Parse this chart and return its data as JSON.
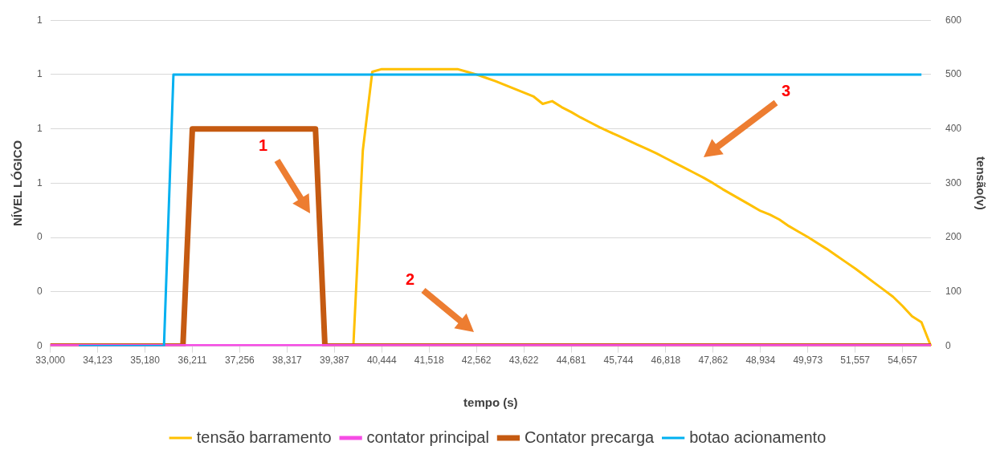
{
  "chart_data": {
    "type": "line",
    "xlabel": "tempo (s)",
    "ylabel": "NÍVEL LÓGICO",
    "y2label": "tensão(v)",
    "categories": [
      "33,000",
      null,
      null,
      null,
      null,
      "34,123",
      null,
      null,
      null,
      null,
      "35,180",
      null,
      null,
      null,
      null,
      "36,211",
      null,
      null,
      null,
      null,
      "37,256",
      null,
      null,
      null,
      null,
      "38,317",
      null,
      null,
      null,
      null,
      "39,387",
      null,
      null,
      null,
      null,
      "40,444",
      null,
      null,
      null,
      null,
      "41,518",
      null,
      null,
      null,
      null,
      "42,562",
      null,
      null,
      null,
      null,
      "43,622",
      null,
      null,
      null,
      null,
      "44,681",
      null,
      null,
      null,
      null,
      "45,744",
      null,
      null,
      null,
      null,
      "46,818",
      null,
      null,
      null,
      null,
      "47,862",
      null,
      null,
      null,
      null,
      "48,934",
      null,
      null,
      null,
      null,
      "49,973",
      null,
      null,
      null,
      null,
      "51,557",
      null,
      null,
      null,
      null,
      "54,657",
      null,
      null,
      null
    ],
    "series": [
      {
        "name": "tensão barramento",
        "color": "#ffc000",
        "axis": "y2",
        "values": [
          null,
          null,
          null,
          null,
          null,
          null,
          null,
          null,
          null,
          null,
          null,
          null,
          null,
          null,
          null,
          null,
          null,
          null,
          null,
          null,
          null,
          null,
          null,
          null,
          null,
          null,
          null,
          null,
          null,
          null,
          null,
          null,
          0,
          360,
          505,
          510,
          510,
          510,
          510,
          510,
          510,
          510,
          510,
          510,
          505,
          500,
          494,
          488,
          481,
          474,
          467,
          460,
          446,
          451,
          440,
          431,
          421,
          412,
          403,
          395,
          387,
          379,
          371,
          363,
          355,
          346,
          337,
          328,
          319,
          310,
          300,
          289,
          279,
          269,
          259,
          249,
          242,
          233,
          221,
          211,
          201,
          190,
          179,
          167,
          155,
          143,
          130,
          117,
          104,
          91,
          74,
          55,
          44,
          0
        ]
      },
      {
        "name": "contator principal",
        "color": "#f64ce5",
        "values": [
          0,
          0,
          0,
          0,
          0,
          0,
          0,
          0,
          0,
          0,
          0,
          0,
          0,
          0,
          0,
          0,
          0,
          0,
          0,
          0,
          0,
          0,
          0,
          0,
          0,
          0,
          0,
          0,
          0,
          0,
          0,
          0,
          0,
          0,
          0,
          0,
          0,
          0,
          0,
          0,
          0,
          0,
          0,
          0,
          0,
          0,
          0,
          0,
          0,
          0,
          0,
          0,
          0,
          0,
          0,
          0,
          0,
          0,
          0,
          0,
          0,
          0,
          0,
          0,
          0,
          0,
          0,
          0,
          0,
          0,
          0,
          0,
          0,
          0,
          0,
          0,
          0,
          0,
          0,
          0,
          0,
          0,
          0,
          0,
          0,
          0,
          0,
          0,
          0,
          0,
          0,
          0,
          0,
          0
        ]
      },
      {
        "name": "Contator precarga",
        "color": "#c55a11",
        "values": [
          0,
          0,
          0,
          0,
          0,
          0,
          0,
          0,
          0,
          0,
          0,
          0,
          0,
          0,
          0,
          0.8,
          0.8,
          0.8,
          0.8,
          0.8,
          0.8,
          0.8,
          0.8,
          0.8,
          0.8,
          0.8,
          0.8,
          0.8,
          0.8,
          0,
          0,
          0,
          0,
          0,
          0,
          0,
          0,
          0,
          0,
          0,
          0,
          0,
          0,
          0,
          0,
          0,
          0,
          0,
          0,
          0,
          0,
          0,
          0,
          0,
          0,
          0,
          0,
          0,
          0,
          0,
          0,
          0,
          0,
          0,
          0,
          0,
          0,
          0,
          0,
          0,
          0,
          0,
          0,
          0,
          0,
          0,
          0,
          0,
          0,
          0,
          0,
          0,
          0,
          0,
          0,
          0,
          0,
          0,
          0,
          0,
          0,
          0,
          0,
          0
        ]
      },
      {
        "name": "botao acionamento",
        "color": "#00b0f0",
        "values": [
          null,
          null,
          null,
          0,
          0,
          0,
          0,
          0,
          0,
          0,
          0,
          0,
          0,
          1,
          1,
          1,
          1,
          1,
          1,
          1,
          1,
          1,
          1,
          1,
          1,
          1,
          1,
          1,
          1,
          1,
          1,
          1,
          1,
          1,
          1,
          1,
          1,
          1,
          1,
          1,
          1,
          1,
          1,
          1,
          1,
          1,
          1,
          1,
          1,
          1,
          1,
          1,
          1,
          1,
          1,
          1,
          1,
          1,
          1,
          1,
          1,
          1,
          1,
          1,
          1,
          1,
          1,
          1,
          1,
          1,
          1,
          1,
          1,
          1,
          1,
          1,
          1,
          1,
          1,
          1,
          1,
          1,
          1,
          1,
          1,
          1,
          1,
          1,
          1,
          1,
          1,
          1,
          1,
          null
        ]
      }
    ],
    "ylim": [
      0,
      1.2
    ],
    "yticks": [
      {
        "value": 0,
        "label": "0"
      },
      {
        "value": 0.2,
        "label": "0"
      },
      {
        "value": 0.4,
        "label": "0"
      },
      {
        "value": 0.6,
        "label": "1"
      },
      {
        "value": 0.8,
        "label": "1"
      },
      {
        "value": 1,
        "label": "1"
      },
      {
        "value": 1.2,
        "label": "1"
      }
    ],
    "y2lim": [
      0,
      600
    ],
    "y2ticks": [
      0,
      100,
      200,
      300,
      400,
      500,
      600
    ],
    "grid": "y",
    "legend": "bottom",
    "marker": "none",
    "line_style": "solid",
    "annotations": [
      "1",
      "2",
      "3"
    ]
  }
}
